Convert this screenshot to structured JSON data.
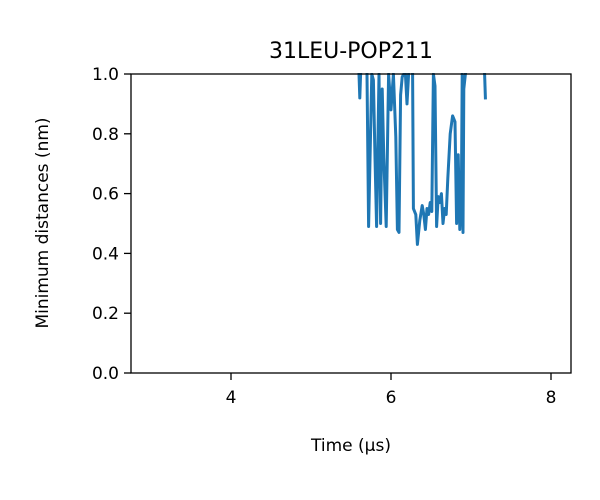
{
  "chart_data": {
    "type": "line",
    "title": "31LEU-POP211",
    "xlabel": "Time (μs)",
    "ylabel": "Minimum distances (nm)",
    "xlim": [
      2.75,
      8.25
    ],
    "ylim": [
      0.0,
      1.0
    ],
    "xticks": [
      4,
      6,
      8
    ],
    "xtick_labels": [
      "4",
      "6",
      "8"
    ],
    "yticks": [
      0.0,
      0.2,
      0.4,
      0.6,
      0.8,
      1.0
    ],
    "ytick_labels": [
      "0.0",
      "0.2",
      "0.4",
      "0.6",
      "0.8",
      "1.0"
    ],
    "grid": false,
    "series": [
      {
        "color": "#1f77b4",
        "segments": [
          [
            [
              5.6,
              1.0
            ],
            [
              5.61,
              0.92
            ],
            [
              5.62,
              1.0
            ]
          ],
          [
            [
              5.7,
              1.0
            ],
            [
              5.72,
              0.49
            ],
            [
              5.76,
              1.0
            ],
            [
              5.78,
              0.98
            ],
            [
              5.8,
              0.72
            ],
            [
              5.82,
              0.49
            ],
            [
              5.85,
              1.0
            ],
            [
              5.87,
              0.5
            ],
            [
              5.89,
              0.95
            ],
            [
              5.91,
              0.72
            ],
            [
              5.94,
              0.49
            ],
            [
              5.97,
              1.0
            ],
            [
              6.0,
              0.88
            ],
            [
              6.03,
              1.0
            ],
            [
              6.06,
              0.79
            ],
            [
              6.08,
              0.48
            ],
            [
              6.1,
              0.47
            ],
            [
              6.12,
              0.93
            ],
            [
              6.14,
              0.99
            ],
            [
              6.16,
              1.0
            ]
          ],
          [
            [
              6.18,
              1.0
            ],
            [
              6.2,
              0.9
            ],
            [
              6.22,
              1.0
            ]
          ],
          [
            [
              6.27,
              1.0
            ],
            [
              6.28,
              0.55
            ],
            [
              6.31,
              0.53
            ],
            [
              6.33,
              0.43
            ],
            [
              6.36,
              0.51
            ],
            [
              6.39,
              0.56
            ],
            [
              6.41,
              0.53
            ],
            [
              6.43,
              0.48
            ],
            [
              6.45,
              0.55
            ],
            [
              6.47,
              0.53
            ],
            [
              6.49,
              0.57
            ],
            [
              6.51,
              0.54
            ],
            [
              6.53,
              1.0
            ],
            [
              6.55,
              0.96
            ],
            [
              6.57,
              0.49
            ],
            [
              6.59,
              0.59
            ],
            [
              6.61,
              0.57
            ],
            [
              6.63,
              0.6
            ],
            [
              6.65,
              0.5
            ],
            [
              6.67,
              0.55
            ],
            [
              6.69,
              0.53
            ],
            [
              6.71,
              0.65
            ],
            [
              6.74,
              0.8
            ],
            [
              6.77,
              0.86
            ],
            [
              6.8,
              0.84
            ],
            [
              6.82,
              0.5
            ],
            [
              6.84,
              0.73
            ],
            [
              6.86,
              0.48
            ],
            [
              6.88,
              0.6
            ],
            [
              6.89,
              1.0
            ],
            [
              6.9,
              0.47
            ],
            [
              6.91,
              0.95
            ],
            [
              6.93,
              1.0
            ]
          ],
          [
            [
              7.17,
              1.0
            ],
            [
              7.18,
              0.92
            ]
          ]
        ]
      }
    ]
  }
}
